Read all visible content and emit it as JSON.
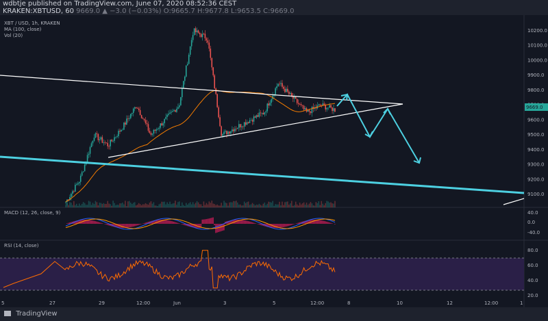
{
  "header": {
    "line1": "wdbtje published on TradingView.com, June 07, 2020 08:52:36 CEST",
    "line2_symbol": "KRAKEN:XBTUSD, 60",
    "line2_values": "9669.0 ▲ −3.0 (−0.03%) O:9665.7 H:9677.8 L:9653.5 C:9669.0"
  },
  "legend": {
    "symbol": "XBT / USD, 1h, KRAKEN",
    "ma": "MA (100, close)",
    "vol": "Vol (20)",
    "macd": "MACD (12, 26, close, 9)",
    "rsi": "RSI (14, close)"
  },
  "price_axis": {
    "ticks": [
      "10200.0",
      "10100.0",
      "10000.0",
      "9900.0",
      "9800.0",
      "9700.0",
      "9600.0",
      "9500.0",
      "9400.0",
      "9300.0",
      "9200.0",
      "9100.0"
    ],
    "current_price": "9669.0"
  },
  "macd_axis": {
    "ticks": [
      "40.0",
      "0.0",
      "-40.0"
    ]
  },
  "rsi_axis": {
    "ticks": [
      "80.0",
      "60.0",
      "40.0",
      "20.0"
    ]
  },
  "time_axis": {
    "ticks": [
      "5",
      "27",
      "29",
      "12:00",
      "Jun",
      "3",
      "5",
      "12:00",
      "8",
      "10",
      "12",
      "12:00",
      "1"
    ]
  },
  "footer": {
    "brand": "TradingView"
  },
  "colors": {
    "background": "#131722",
    "up": "#26a69a",
    "down": "#ef5350",
    "ma": "#f57c00",
    "arrows": "#4dd0e1",
    "trend": "#ffffff",
    "rsi_band": "#2a1f47",
    "rsi_line": "#ff6d00",
    "macd_line": "#2962ff",
    "signal_line": "#ff9800",
    "hist": "#e91e63"
  },
  "chart_data": {
    "type": "candlestick",
    "symbol": "XBT / USD",
    "timeframe": "1h",
    "current": {
      "open": 9665.7,
      "high": 9677.8,
      "low": 9653.5,
      "close": 9669.0
    },
    "close_path": [
      {
        "t": "May 27",
        "close": 9050
      },
      {
        "t": "May 28",
        "close": 9200
      },
      {
        "t": "May 28",
        "close": 9500
      },
      {
        "t": "May 29",
        "close": 9430
      },
      {
        "t": "May 29",
        "close": 9550
      },
      {
        "t": "May 30",
        "close": 9700
      },
      {
        "t": "May 30",
        "close": 9500
      },
      {
        "t": "May 31",
        "close": 9600
      },
      {
        "t": "Jun 1",
        "close": 9700
      },
      {
        "t": "Jun 1",
        "close": 10200
      },
      {
        "t": "Jun 2",
        "close": 10150
      },
      {
        "t": "Jun 2",
        "close": 9500
      },
      {
        "t": "Jun 3",
        "close": 9550
      },
      {
        "t": "Jun 3",
        "close": 9600
      },
      {
        "t": "Jun 4",
        "close": 9650
      },
      {
        "t": "Jun 5",
        "close": 9850
      },
      {
        "t": "Jun 5",
        "close": 9750
      },
      {
        "t": "Jun 6",
        "close": 9650
      },
      {
        "t": "Jun 6",
        "close": 9700
      },
      {
        "t": "Jun 7",
        "close": 9669
      }
    ],
    "ylim": [
      9050,
      10250
    ]
  }
}
